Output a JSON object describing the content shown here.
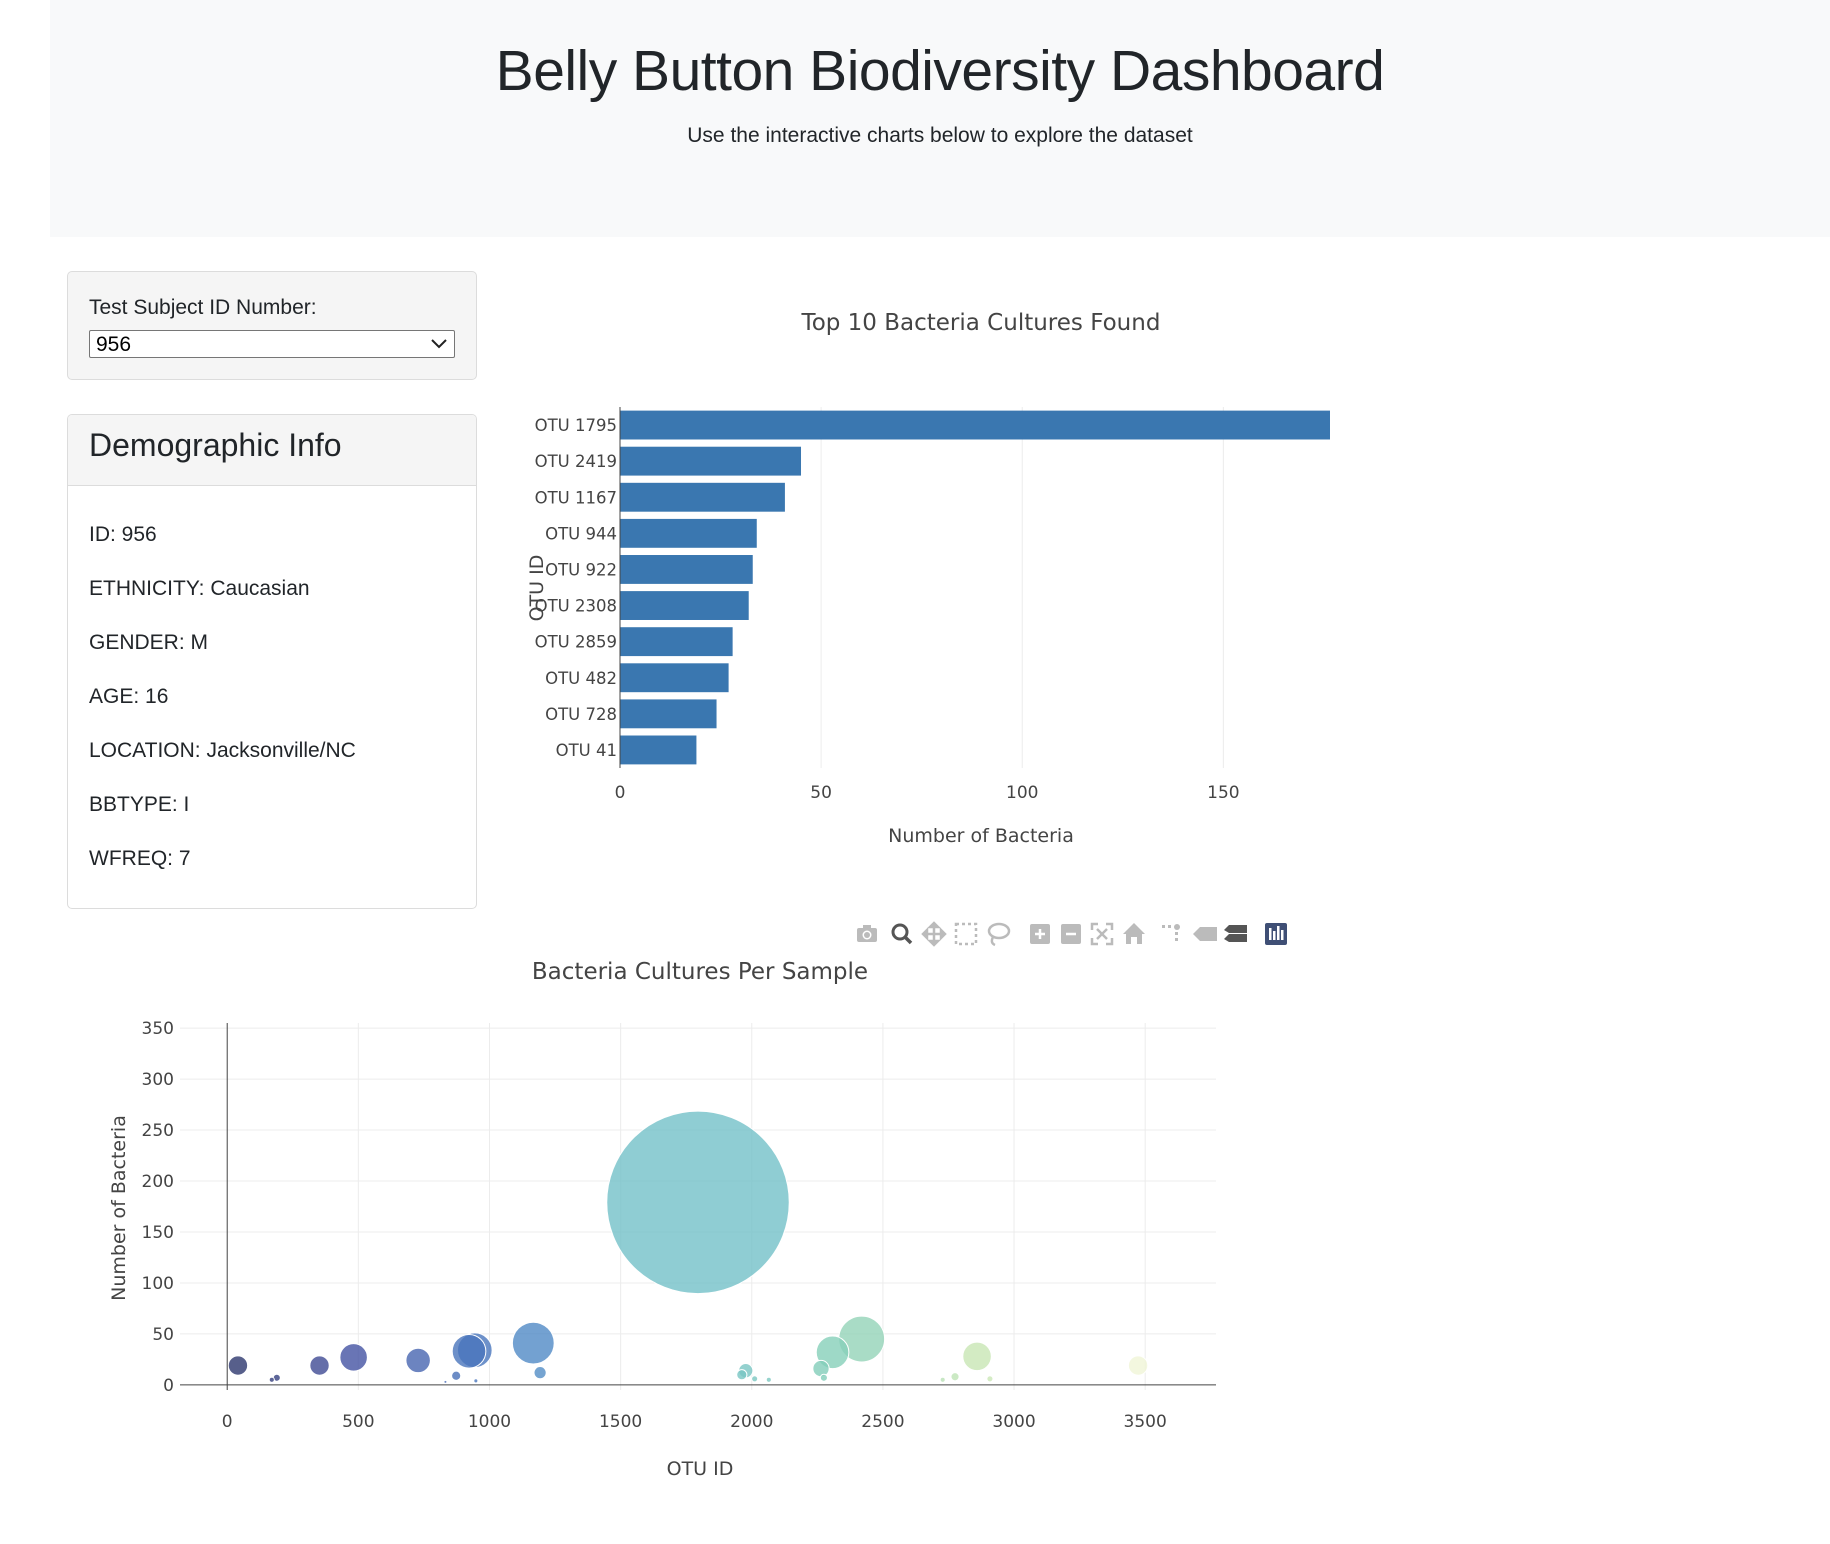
{
  "header": {
    "title": "Belly Button Biodiversity Dashboard",
    "subtitle": "Use the interactive charts below to explore the dataset"
  },
  "selector": {
    "label": "Test Subject ID Number:",
    "selected": "956"
  },
  "demographic": {
    "title": "Demographic Info",
    "items": [
      "ID: 956",
      "ETHNICITY: Caucasian",
      "GENDER: M",
      "AGE: 16",
      "LOCATION: Jacksonville/NC",
      "BBTYPE: I",
      "WFREQ: 7"
    ]
  },
  "colors": {
    "bar": "#3a77b0",
    "jumbotron_bg": "#f8f9fa",
    "panel_bg": "#f5f5f5"
  },
  "modebar_icons": [
    "camera-icon",
    "zoom-icon",
    "pan-icon",
    "box-select-icon",
    "lasso-icon",
    "zoom-in-icon",
    "zoom-out-icon",
    "autoscale-icon",
    "reset-axes-icon",
    "spike-lines-icon",
    "hover-closest-icon",
    "hover-compare-icon",
    "plotly-logo-icon"
  ],
  "chart_data": [
    {
      "type": "bar",
      "orientation": "h",
      "title": "Top 10 Bacteria Cultures Found",
      "xlabel": "Number of Bacteria",
      "ylabel": "OTU ID",
      "categories": [
        "OTU 1795",
        "OTU 2419",
        "OTU 1167",
        "OTU 944",
        "OTU 922",
        "OTU 2308",
        "OTU 2859",
        "OTU 482",
        "OTU 728",
        "OTU 41"
      ],
      "values": [
        179,
        45,
        41,
        34,
        33,
        32,
        28,
        27,
        24,
        19
      ],
      "xlim": [
        0,
        179
      ],
      "xticks": [
        0,
        50,
        100,
        150
      ],
      "xtick_labels": [
        "0",
        "50",
        "100",
        "150"
      ]
    },
    {
      "type": "scatter",
      "mode": "bubble",
      "title": "Bacteria Cultures Per Sample",
      "xlabel": "OTU ID",
      "ylabel": "Number of Bacteria",
      "xlim": [
        -180,
        3770
      ],
      "ylim": [
        -5,
        355
      ],
      "xticks": [
        0,
        500,
        1000,
        1500,
        2000,
        2500,
        3000,
        3500
      ],
      "xtick_labels": [
        "0",
        "500",
        "1000",
        "1500",
        "2000",
        "2500",
        "3000",
        "3500"
      ],
      "yticks": [
        0,
        50,
        100,
        150,
        200,
        250,
        300,
        350
      ],
      "ytick_labels": [
        "0",
        "50",
        "100",
        "150",
        "200",
        "250",
        "300",
        "350"
      ],
      "x": [
        41,
        170,
        189,
        352,
        482,
        728,
        832,
        873,
        922,
        944,
        948,
        1167,
        1193,
        1795,
        1962,
        1977,
        2011,
        2065,
        2264,
        2275,
        2308,
        2419,
        2728,
        2775,
        2859,
        2908,
        3473
      ],
      "y": [
        19,
        5,
        7,
        19,
        27,
        24,
        3,
        9,
        33,
        34,
        4,
        41,
        12,
        179,
        10,
        14,
        6,
        5,
        16,
        7,
        32,
        45,
        5,
        8,
        28,
        6,
        19
      ],
      "colorscale": "Earth"
    }
  ]
}
